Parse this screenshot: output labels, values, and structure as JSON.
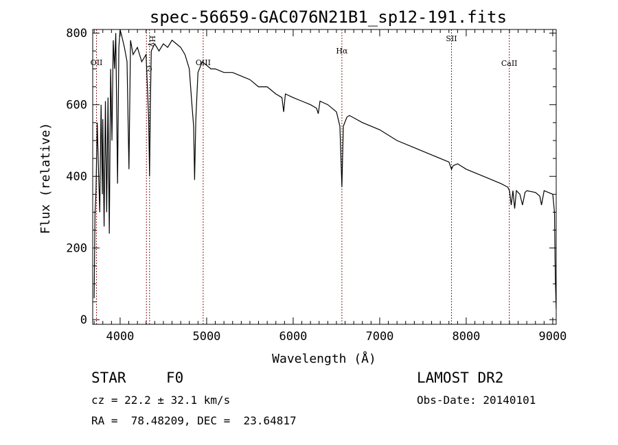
{
  "chart_data": {
    "type": "line",
    "title": "spec-56659-GAC076N21B1_sp12-191.fits",
    "xlabel": "Wavelength (Å)",
    "ylabel": "Flux (relative)",
    "xlim": [
      3683,
      9040
    ],
    "ylim": [
      -13,
      810
    ],
    "xticks": [
      4000,
      5000,
      6000,
      7000,
      8000,
      9000
    ],
    "yticks": [
      0,
      200,
      400,
      600,
      800
    ],
    "grid": false,
    "series": [
      {
        "name": "spectrum",
        "x": [
          3700,
          3710,
          3720,
          3735,
          3750,
          3765,
          3780,
          3795,
          3800,
          3815,
          3830,
          3845,
          3860,
          3875,
          3890,
          3905,
          3920,
          3935,
          3950,
          3970,
          3985,
          4000,
          4020,
          4050,
          4080,
          4102,
          4120,
          4150,
          4200,
          4250,
          4300,
          4320,
          4330,
          4340,
          4350,
          4360,
          4400,
          4450,
          4500,
          4550,
          4600,
          4650,
          4700,
          4750,
          4800,
          4830,
          4850,
          4861,
          4875,
          4900,
          4950,
          5000,
          5050,
          5100,
          5200,
          5300,
          5400,
          5500,
          5600,
          5700,
          5800,
          5870,
          5890,
          5910,
          6000,
          6100,
          6200,
          6270,
          6290,
          6310,
          6400,
          6500,
          6540,
          6563,
          6580,
          6620,
          6650,
          6800,
          7000,
          7200,
          7400,
          7600,
          7800,
          7830,
          7850,
          7900,
          8000,
          8200,
          8400,
          8480,
          8500,
          8520,
          8540,
          8560,
          8580,
          8620,
          8650,
          8680,
          8700,
          8800,
          8850,
          8870,
          8900,
          9000,
          9020,
          9030,
          9040
        ],
        "y": [
          60,
          300,
          350,
          550,
          420,
          300,
          600,
          350,
          560,
          260,
          610,
          300,
          620,
          240,
          700,
          500,
          780,
          700,
          800,
          380,
          760,
          810,
          790,
          760,
          720,
          420,
          780,
          740,
          760,
          720,
          740,
          620,
          560,
          400,
          600,
          750,
          770,
          750,
          770,
          760,
          780,
          770,
          760,
          740,
          700,
          600,
          540,
          390,
          560,
          690,
          720,
          710,
          700,
          700,
          690,
          690,
          680,
          670,
          650,
          650,
          630,
          620,
          580,
          630,
          620,
          610,
          600,
          590,
          575,
          610,
          600,
          580,
          540,
          370,
          540,
          565,
          570,
          550,
          530,
          500,
          480,
          460,
          440,
          420,
          430,
          435,
          420,
          400,
          380,
          370,
          360,
          320,
          360,
          310,
          360,
          350,
          320,
          355,
          360,
          355,
          345,
          320,
          360,
          350,
          300,
          120,
          30
        ]
      }
    ],
    "line_markers": [
      {
        "label": "OII",
        "x": 3727
      },
      {
        "label": "G",
        "x": 4304
      },
      {
        "label": "Hγ",
        "x": 4340
      },
      {
        "label": "OIII",
        "x": 4960
      },
      {
        "label": "Hα",
        "x": 6563
      },
      {
        "label": "SII",
        "x": 7830
      },
      {
        "label": "CaII",
        "x": 8498
      }
    ]
  },
  "info": {
    "object_class": "STAR",
    "subclass": "F0",
    "survey": "LAMOST DR2",
    "redshift": "cz = 22.2 ± 32.1 km/s",
    "obs_date": "Obs-Date: 20140101",
    "coords": "RA =  78.48209, DEC =  23.64817"
  },
  "colors": {
    "axis": "#000000",
    "marker": "#8b1a1a",
    "spectrum": "#000000"
  }
}
